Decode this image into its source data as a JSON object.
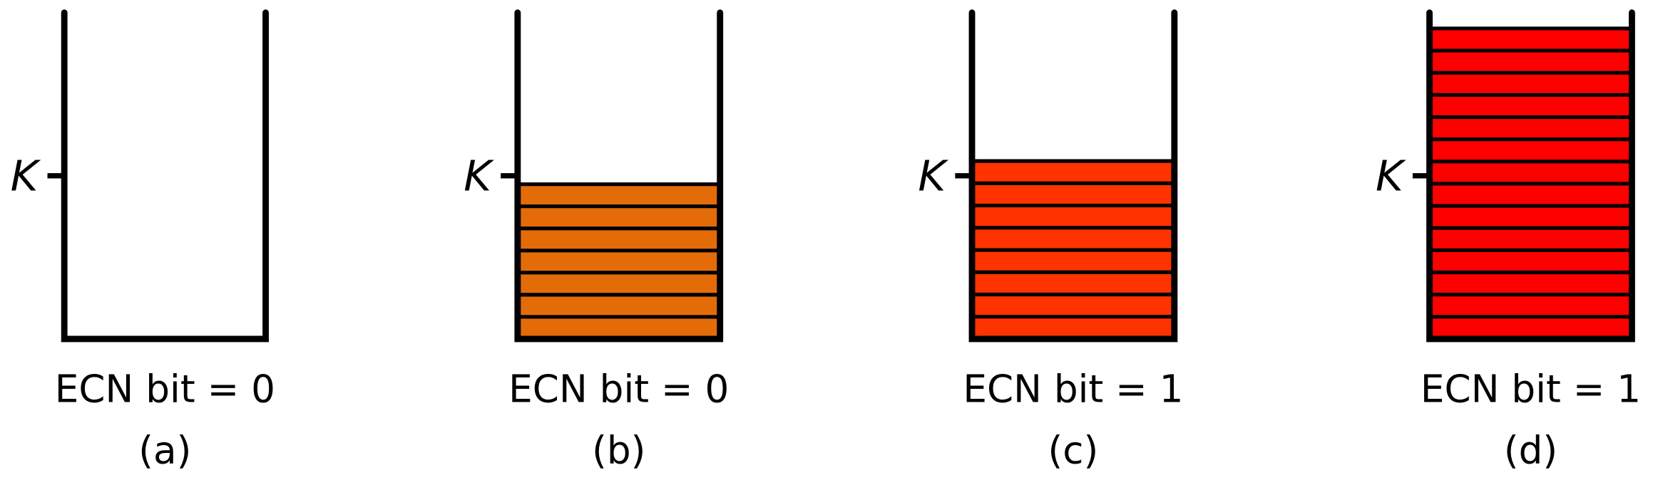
{
  "panels": [
    {
      "threshold_label": "K",
      "ecn_label": "ECN bit = 0",
      "caption": "(a)"
    },
    {
      "threshold_label": "K",
      "ecn_label": "ECN bit = 0",
      "caption": "(b)"
    },
    {
      "threshold_label": "K",
      "ecn_label": "ECN bit = 1",
      "caption": "(c)"
    },
    {
      "threshold_label": "K",
      "ecn_label": "ECN bit = 1",
      "caption": "(d)"
    }
  ]
}
